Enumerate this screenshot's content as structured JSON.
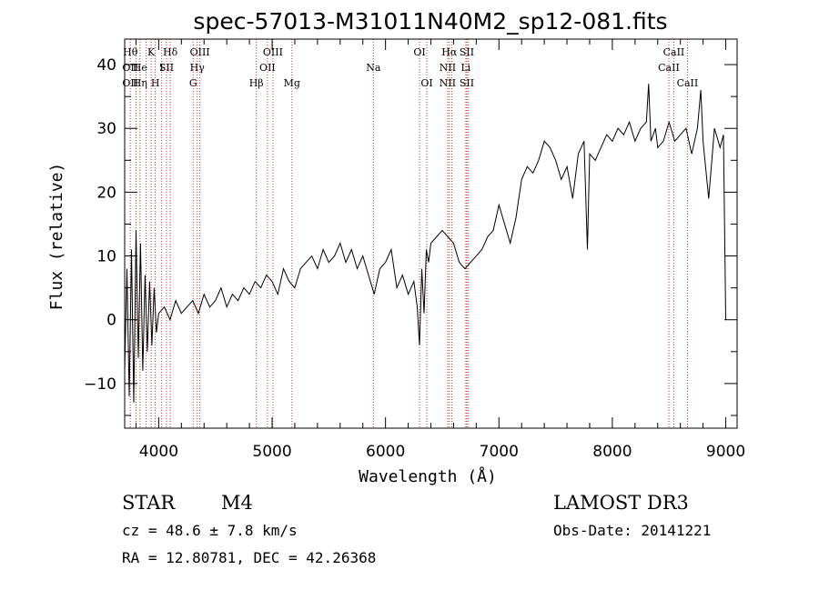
{
  "chart_data": {
    "type": "line",
    "title": "spec-57013-M31011N40M2_sp12-081.fits",
    "xlabel": "Wavelength (Å)",
    "ylabel": "Flux (relative)",
    "xlim": [
      3700,
      9100
    ],
    "ylim": [
      -17,
      44
    ],
    "xticks": [
      4000,
      5000,
      6000,
      7000,
      8000,
      9000
    ],
    "yticks": [
      -10,
      0,
      10,
      20,
      30,
      40
    ],
    "series": [
      {
        "name": "flux",
        "x": [
          3700,
          3720,
          3740,
          3760,
          3780,
          3800,
          3820,
          3840,
          3860,
          3880,
          3900,
          3920,
          3940,
          3960,
          3980,
          4000,
          4050,
          4100,
          4150,
          4200,
          4250,
          4300,
          4350,
          4400,
          4450,
          4500,
          4550,
          4600,
          4650,
          4700,
          4750,
          4800,
          4850,
          4900,
          4950,
          5000,
          5050,
          5100,
          5150,
          5200,
          5250,
          5300,
          5350,
          5400,
          5450,
          5500,
          5550,
          5600,
          5650,
          5700,
          5750,
          5800,
          5850,
          5900,
          5950,
          6000,
          6050,
          6100,
          6150,
          6200,
          6250,
          6280,
          6300,
          6320,
          6340,
          6360,
          6380,
          6400,
          6450,
          6500,
          6550,
          6600,
          6650,
          6700,
          6750,
          6800,
          6850,
          6900,
          6950,
          7000,
          7050,
          7100,
          7150,
          7200,
          7250,
          7300,
          7350,
          7400,
          7450,
          7500,
          7550,
          7600,
          7650,
          7700,
          7750,
          7780,
          7800,
          7850,
          7900,
          7950,
          8000,
          8050,
          8100,
          8150,
          8200,
          8250,
          8300,
          8320,
          8340,
          8360,
          8380,
          8400,
          8450,
          8500,
          8550,
          8600,
          8650,
          8700,
          8750,
          8780,
          8800,
          8850,
          8900,
          8950,
          8980,
          9000
        ],
        "y": [
          -8,
          8,
          -12,
          11,
          -13,
          14,
          -6,
          12,
          -8,
          7,
          -5,
          6,
          -4,
          5,
          -2,
          1,
          2,
          0,
          3,
          1,
          2,
          3,
          1,
          4,
          2,
          3,
          5,
          2,
          4,
          3,
          5,
          4,
          6,
          5,
          7,
          6,
          4,
          8,
          6,
          5,
          8,
          9,
          10,
          8,
          11,
          9,
          10,
          12,
          9,
          11,
          8,
          10,
          7,
          4,
          8,
          9,
          11,
          5,
          7,
          4,
          6,
          2,
          -4,
          8,
          1,
          11,
          9,
          12,
          13,
          14,
          13,
          12,
          9,
          8,
          9,
          10,
          11,
          13,
          14,
          18,
          15,
          12,
          16,
          22,
          24,
          23,
          25,
          28,
          27,
          25,
          22,
          24,
          19,
          26,
          28,
          11,
          26,
          25,
          27,
          29,
          28,
          30,
          29,
          31,
          28,
          30,
          31,
          37,
          28,
          29,
          30,
          27,
          28,
          31,
          28,
          29,
          30,
          26,
          30,
          36,
          28,
          19,
          30,
          27,
          29,
          0
        ]
      }
    ],
    "lines": [
      {
        "x": 3750,
        "labels": [
          "Hθ",
          "OII",
          "OII"
        ]
      },
      {
        "x": 3800,
        "labels": []
      },
      {
        "x": 3835,
        "labels": [
          "",
          "He",
          "Hη"
        ]
      },
      {
        "x": 3889,
        "labels": []
      },
      {
        "x": 3934,
        "labels": [
          "K",
          "",
          ""
        ]
      },
      {
        "x": 3970,
        "labels": [
          "",
          "",
          "H"
        ]
      },
      {
        "x": 4026,
        "labels": [
          "",
          "I",
          ""
        ]
      },
      {
        "x": 4069,
        "labels": [
          "",
          "SII",
          ""
        ]
      },
      {
        "x": 4102,
        "labels": [
          "Hδ",
          "",
          ""
        ]
      },
      {
        "x": 4304,
        "labels": [
          "",
          "",
          "G"
        ]
      },
      {
        "x": 4340,
        "labels": [
          "",
          "Hγ",
          ""
        ]
      },
      {
        "x": 4363,
        "labels": [
          "OIII",
          "",
          ""
        ]
      },
      {
        "x": 4861,
        "labels": [
          "",
          "",
          "Hβ"
        ]
      },
      {
        "x": 4959,
        "labels": [
          "",
          "OII",
          ""
        ]
      },
      {
        "x": 5007,
        "labels": [
          "OIII",
          "",
          ""
        ]
      },
      {
        "x": 5175,
        "labels": [
          "",
          "",
          "Mg"
        ]
      },
      {
        "x": 5893,
        "labels": [
          "",
          "Na",
          ""
        ]
      },
      {
        "x": 6300,
        "labels": [
          "OI",
          "",
          ""
        ]
      },
      {
        "x": 6364,
        "labels": [
          "",
          "",
          "OI"
        ]
      },
      {
        "x": 6548,
        "labels": [
          "",
          "NII",
          "NII"
        ]
      },
      {
        "x": 6563,
        "labels": [
          "Hα",
          "",
          ""
        ]
      },
      {
        "x": 6584,
        "labels": []
      },
      {
        "x": 6708,
        "labels": [
          "",
          "Li",
          ""
        ]
      },
      {
        "x": 6717,
        "labels": [
          "SII",
          "",
          "SII"
        ]
      },
      {
        "x": 6731,
        "labels": []
      },
      {
        "x": 8498,
        "labels": [
          "",
          "CaII",
          ""
        ]
      },
      {
        "x": 8542,
        "labels": [
          "CaII",
          "",
          ""
        ]
      },
      {
        "x": 8662,
        "labels": [
          "",
          "",
          "CaII"
        ]
      }
    ]
  },
  "info": {
    "object_class": "STAR",
    "subclass": "M4",
    "survey": "LAMOST DR3",
    "redshift": "cz = 48.6 ± 7.8 km/s",
    "obs_date": "Obs-Date: 20141221",
    "coords": "RA =  12.80781, DEC =  42.26368"
  },
  "colors": {
    "line": "#000000",
    "marker": "#c0392b",
    "axis": "#000000"
  }
}
